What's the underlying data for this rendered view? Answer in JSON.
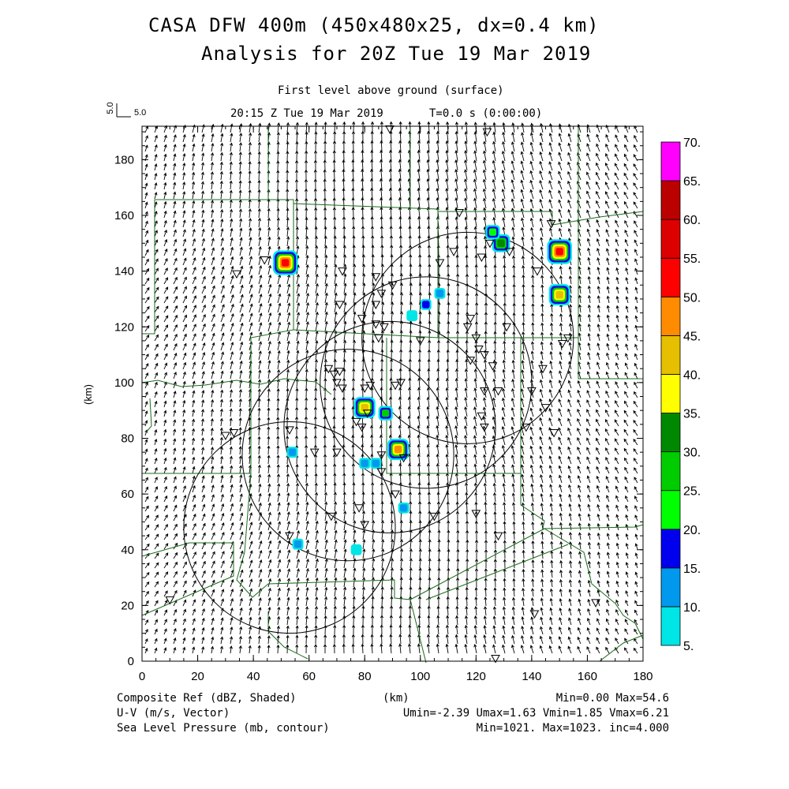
{
  "header": {
    "title_line1": "CASA DFW 400m (450x480x25, dx=0.4 km)",
    "title_line2": "Analysis for 20Z Tue 19 Mar 2019",
    "level": "First level above ground (surface)",
    "time": "20:15 Z Tue 19 Mar 2019",
    "elapsed": "T=0.0 s (0:00:00)",
    "vector_ref_label": "5.0",
    "vector_ref_value": "5.0"
  },
  "axes": {
    "x_ticks": [
      "0",
      "20",
      "40",
      "60",
      "80",
      "100",
      "120",
      "140",
      "160",
      "180"
    ],
    "y_ticks": [
      "0",
      "20",
      "40",
      "60",
      "80",
      "100",
      "120",
      "140",
      "160",
      "180"
    ],
    "x_label": "(km)",
    "y_label": "(km)",
    "x_range": [
      0,
      180
    ],
    "y_range": [
      0,
      192
    ]
  },
  "colorbar": {
    "labels": [
      "5.",
      "10.",
      "15.",
      "20.",
      "25.",
      "30.",
      "35.",
      "40.",
      "45.",
      "50.",
      "55.",
      "60.",
      "65.",
      "70."
    ],
    "colors": [
      "#00e5e5",
      "#0099ee",
      "#0000ee",
      "#00ff00",
      "#00cc00",
      "#008800",
      "#ffff00",
      "#e5bf00",
      "#ff8c00",
      "#ff0000",
      "#dd0000",
      "#bb0000",
      "#ff00ff"
    ]
  },
  "footer": {
    "field1": "Composite Ref (dBZ, Shaded)",
    "field2": "U-V (m/s, Vector)",
    "field3": "Sea Level Pressure (mb, contour)",
    "center_label": "(km)",
    "stats1": "Min=0.00 Max=54.6",
    "stats2": "Umin=-2.39 Umax=1.63 Vmin=1.85 Vmax=6.21",
    "stats3": "Min=1021. Max=1023. inc=4.000"
  },
  "map_data": {
    "radar_rings": [
      {
        "x": 53,
        "y": 48,
        "r": 38
      },
      {
        "x": 74,
        "y": 74,
        "r": 38
      },
      {
        "x": 89,
        "y": 84,
        "r": 38
      },
      {
        "x": 102,
        "y": 100,
        "r": 38
      },
      {
        "x": 117,
        "y": 116,
        "r": 38
      }
    ],
    "echoes": [
      {
        "x": 51.5,
        "y": 143,
        "dbz": 50
      },
      {
        "x": 150,
        "y": 147,
        "dbz": 54
      },
      {
        "x": 150,
        "y": 131.5,
        "dbz": 40
      },
      {
        "x": 129,
        "y": 150,
        "dbz": 30
      },
      {
        "x": 126,
        "y": 154,
        "dbz": 20
      },
      {
        "x": 80,
        "y": 91,
        "dbz": 40
      },
      {
        "x": 87.5,
        "y": 89,
        "dbz": 25
      },
      {
        "x": 92,
        "y": 76,
        "dbz": 45
      },
      {
        "x": 102,
        "y": 128,
        "dbz": 15
      },
      {
        "x": 107,
        "y": 132,
        "dbz": 10
      },
      {
        "x": 54,
        "y": 75,
        "dbz": 10
      },
      {
        "x": 80,
        "y": 71,
        "dbz": 10
      },
      {
        "x": 84,
        "y": 71,
        "dbz": 10
      },
      {
        "x": 94,
        "y": 55,
        "dbz": 10
      },
      {
        "x": 56,
        "y": 42,
        "dbz": 10
      },
      {
        "x": 77,
        "y": 40,
        "dbz": 8
      },
      {
        "x": 97,
        "y": 124,
        "dbz": 8
      }
    ],
    "stations": [
      [
        44,
        144
      ],
      [
        34,
        139
      ],
      [
        72,
        140
      ],
      [
        84,
        138
      ],
      [
        86,
        132
      ],
      [
        84,
        128
      ],
      [
        71,
        128
      ],
      [
        90,
        135
      ],
      [
        107,
        143
      ],
      [
        112,
        147
      ],
      [
        122,
        145
      ],
      [
        125,
        150
      ],
      [
        147,
        157
      ],
      [
        114,
        161
      ],
      [
        132,
        147
      ],
      [
        142,
        140
      ],
      [
        79,
        123
      ],
      [
        84,
        121
      ],
      [
        87,
        120
      ],
      [
        85,
        116
      ],
      [
        100,
        115
      ],
      [
        117,
        120
      ],
      [
        118,
        123
      ],
      [
        120,
        116
      ],
      [
        121,
        112
      ],
      [
        123,
        110
      ],
      [
        118,
        108
      ],
      [
        126,
        106
      ],
      [
        131,
        120
      ],
      [
        123,
        97
      ],
      [
        128,
        97
      ],
      [
        144,
        105
      ],
      [
        140,
        97
      ],
      [
        145,
        91
      ],
      [
        148,
        82
      ],
      [
        151,
        114
      ],
      [
        153,
        116
      ],
      [
        67,
        105
      ],
      [
        69,
        103
      ],
      [
        71,
        104
      ],
      [
        70,
        100
      ],
      [
        72,
        98
      ],
      [
        80,
        98
      ],
      [
        82,
        99
      ],
      [
        91,
        99
      ],
      [
        93,
        100
      ],
      [
        77,
        86
      ],
      [
        79,
        84
      ],
      [
        81,
        89
      ],
      [
        122,
        88
      ],
      [
        123,
        84
      ],
      [
        138,
        84
      ],
      [
        53,
        83
      ],
      [
        30,
        81
      ],
      [
        33,
        82
      ],
      [
        62,
        75
      ],
      [
        70,
        75
      ],
      [
        86,
        74
      ],
      [
        94,
        73
      ],
      [
        86,
        68
      ],
      [
        91,
        60
      ],
      [
        80,
        49
      ],
      [
        68,
        52
      ],
      [
        105,
        52
      ],
      [
        120,
        53
      ],
      [
        128,
        45
      ],
      [
        53,
        45
      ],
      [
        78,
        55
      ],
      [
        10,
        22
      ],
      [
        141,
        17
      ],
      [
        163,
        21
      ],
      [
        127,
        1
      ],
      [
        89,
        191
      ],
      [
        124,
        190
      ]
    ]
  }
}
